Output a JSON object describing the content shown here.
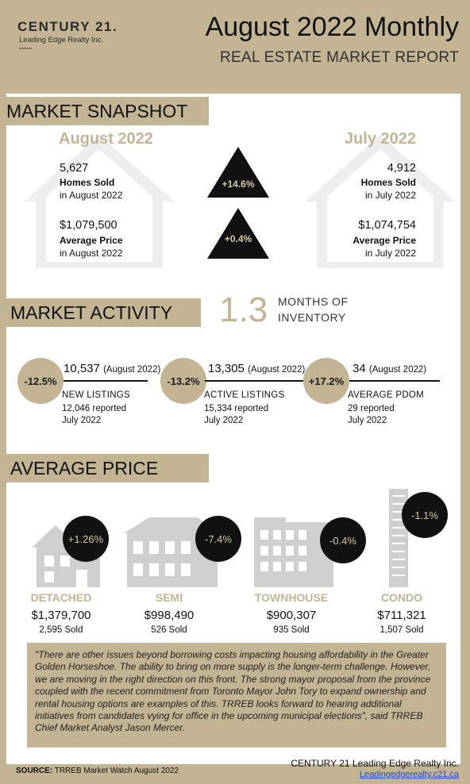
{
  "header": {
    "logo_main": "CENTURY 21.",
    "logo_sub": "Leading Edge Realty Inc.",
    "title": "August 2022 Monthly",
    "subtitle": "REAL ESTATE MARKET REPORT"
  },
  "snapshot": {
    "banner": "MARKET SNAPSHOT",
    "current": {
      "month": "August 2022",
      "homes_sold": "5,627",
      "homes_sold_label": "Homes Sold",
      "homes_sold_period": "in August 2022",
      "avg_price": "$1,079,500",
      "avg_price_label": "Average Price",
      "avg_price_period": "in August 2022"
    },
    "previous": {
      "month": "July 2022",
      "homes_sold": "4,912",
      "homes_sold_label": "Homes Sold",
      "homes_sold_period": "in July 2022",
      "avg_price": "$1,074,754",
      "avg_price_label": "Average Price",
      "avg_price_period": "in July 2022"
    },
    "change_sold": "+14.6%",
    "change_price": "+0.4%"
  },
  "activity": {
    "banner": "MARKET ACTIVITY",
    "inventory_value": "1.3",
    "inventory_label_1": "MONTHS OF",
    "inventory_label_2": "INVENTORY",
    "items": [
      {
        "change": "-12.5%",
        "value": "10,537",
        "period": "(August 2022)",
        "label": "NEW LISTINGS",
        "prev": "12,046  reported",
        "prev_period": "July 2022"
      },
      {
        "change": "-13.2%",
        "value": "13,305",
        "period": "(August 2022)",
        "label": "ACTIVE LISTINGS",
        "prev": "15,334  reported",
        "prev_period": "July 2022"
      },
      {
        "change": "+17.2%",
        "value": "34",
        "period": "(August 2022)",
        "label": "AVERAGE PDOM",
        "prev": "29 reported",
        "prev_period": "July 2022"
      }
    ]
  },
  "avg_price": {
    "banner": "AVERAGE PRICE",
    "types": [
      {
        "name": "DETACHED",
        "change": "+1.26%",
        "price": "$1,379,700",
        "sold": "2,595 Sold",
        "icon": "detached-house-icon"
      },
      {
        "name": "SEMI",
        "change": "-7.4%",
        "price": "$998,490",
        "sold": "526 Sold",
        "icon": "semi-house-icon"
      },
      {
        "name": "TOWNHOUSE",
        "change": "-0.4%",
        "price": "$900,307",
        "sold": "935 Sold",
        "icon": "townhouse-icon"
      },
      {
        "name": "CONDO",
        "change": "-1.1%",
        "price": "$711,321",
        "sold": "1,507 Sold",
        "icon": "condo-tower-icon"
      }
    ]
  },
  "quote": "\"There are other issues beyond borrowing costs impacting housing affordability in the Greater Golden Horseshoe. The ability to bring on more supply is the longer-term challenge. However, we are moving in the right direction on this front. The strong mayor proposal from the province coupled with the recent commitment from Toronto Mayor John Tory to expand ownership and rental housing options are examples of this. TRREB looks forward to hearing additional initiatives from candidates vying for office in the upcoming municipal elections\", said TRREB Chief Market Analyst Jason Mercer.",
  "footer": {
    "source_label": "SOURCE:",
    "source_text": " TRREB Market Watch August 2022",
    "company": "CENTURY 21 Leading Edge Realty Inc.",
    "link": "Leadingedgerealty.c21.ca"
  },
  "colors": {
    "gold": "#c3b594",
    "dark": "#111111",
    "panel": "#ffffff",
    "link": "#1a4bd6"
  }
}
